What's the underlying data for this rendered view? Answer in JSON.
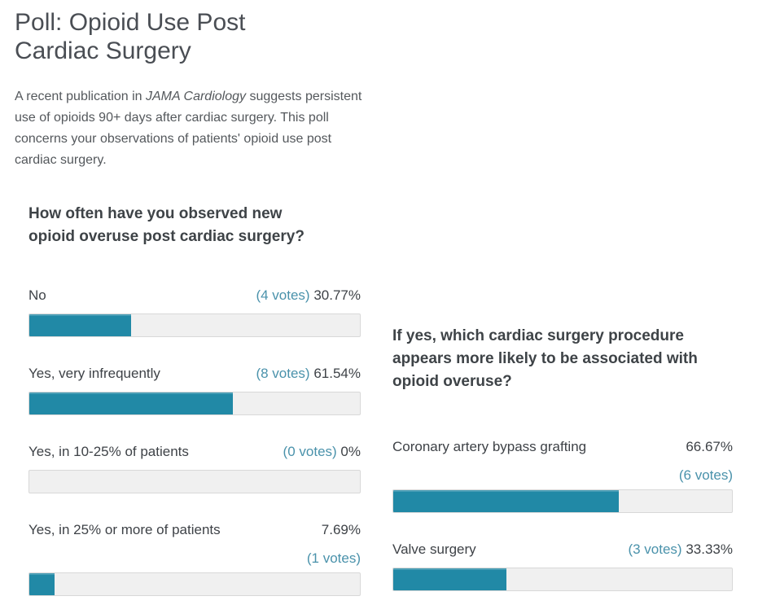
{
  "title": "Poll: Opioid Use Post Cardiac Surgery",
  "intro": {
    "pre": "A recent publication in ",
    "journal": "JAMA Cardiology",
    "post": " suggests persistent use of opioids 90+ days after cardiac surgery. This poll concerns your observations of patients' opioid use post cardiac surgery."
  },
  "colors": {
    "bar_fill": "#2189a6",
    "bar_track": "#f0f0f0",
    "bar_border": "#d8d8d8",
    "votes_link": "#4a92ab",
    "heading_text": "#3e4347",
    "body_text": "#54585c",
    "title_text": "#4a4e54"
  },
  "polls": [
    {
      "question": "How often have you observed new opioid overuse post cardiac surgery?",
      "options": [
        {
          "label": "No",
          "votes": "(4 votes)",
          "percent": "30.77%",
          "value": 30.77
        },
        {
          "label": "Yes, very infrequently",
          "votes": "(8 votes)",
          "percent": "61.54%",
          "value": 61.54
        },
        {
          "label": "Yes, in 10-25% of patients",
          "votes": "(0 votes)",
          "percent": "0%",
          "value": 0
        },
        {
          "label": "Yes, in 25% or more of patients",
          "votes": "(1 votes)",
          "percent": "7.69%",
          "value": 7.69
        }
      ]
    },
    {
      "question": "If yes, which cardiac surgery procedure appears more likely to be associated with opioid overuse?",
      "options": [
        {
          "label": "Coronary artery bypass grafting",
          "votes": "(6 votes)",
          "percent": "66.67%",
          "value": 66.67
        },
        {
          "label": "Valve surgery",
          "votes": "(3 votes)",
          "percent": "33.33%",
          "value": 33.33
        }
      ]
    }
  ],
  "chart_data": [
    {
      "type": "bar",
      "orientation": "horizontal",
      "title": "How often have you observed new opioid overuse post cardiac surgery?",
      "categories": [
        "No",
        "Yes, very infrequently",
        "Yes, in 10-25% of patients",
        "Yes, in 25% or more of patients"
      ],
      "values": [
        30.77,
        61.54,
        0,
        7.69
      ],
      "votes": [
        4,
        8,
        0,
        1
      ],
      "unit": "%",
      "xlim": [
        0,
        100
      ],
      "grid": false,
      "legend": false
    },
    {
      "type": "bar",
      "orientation": "horizontal",
      "title": "If yes, which cardiac surgery procedure appears more likely to be associated with opioid overuse?",
      "categories": [
        "Coronary artery bypass grafting",
        "Valve surgery"
      ],
      "values": [
        66.67,
        33.33
      ],
      "votes": [
        6,
        3
      ],
      "unit": "%",
      "xlim": [
        0,
        100
      ],
      "grid": false,
      "legend": false
    }
  ]
}
